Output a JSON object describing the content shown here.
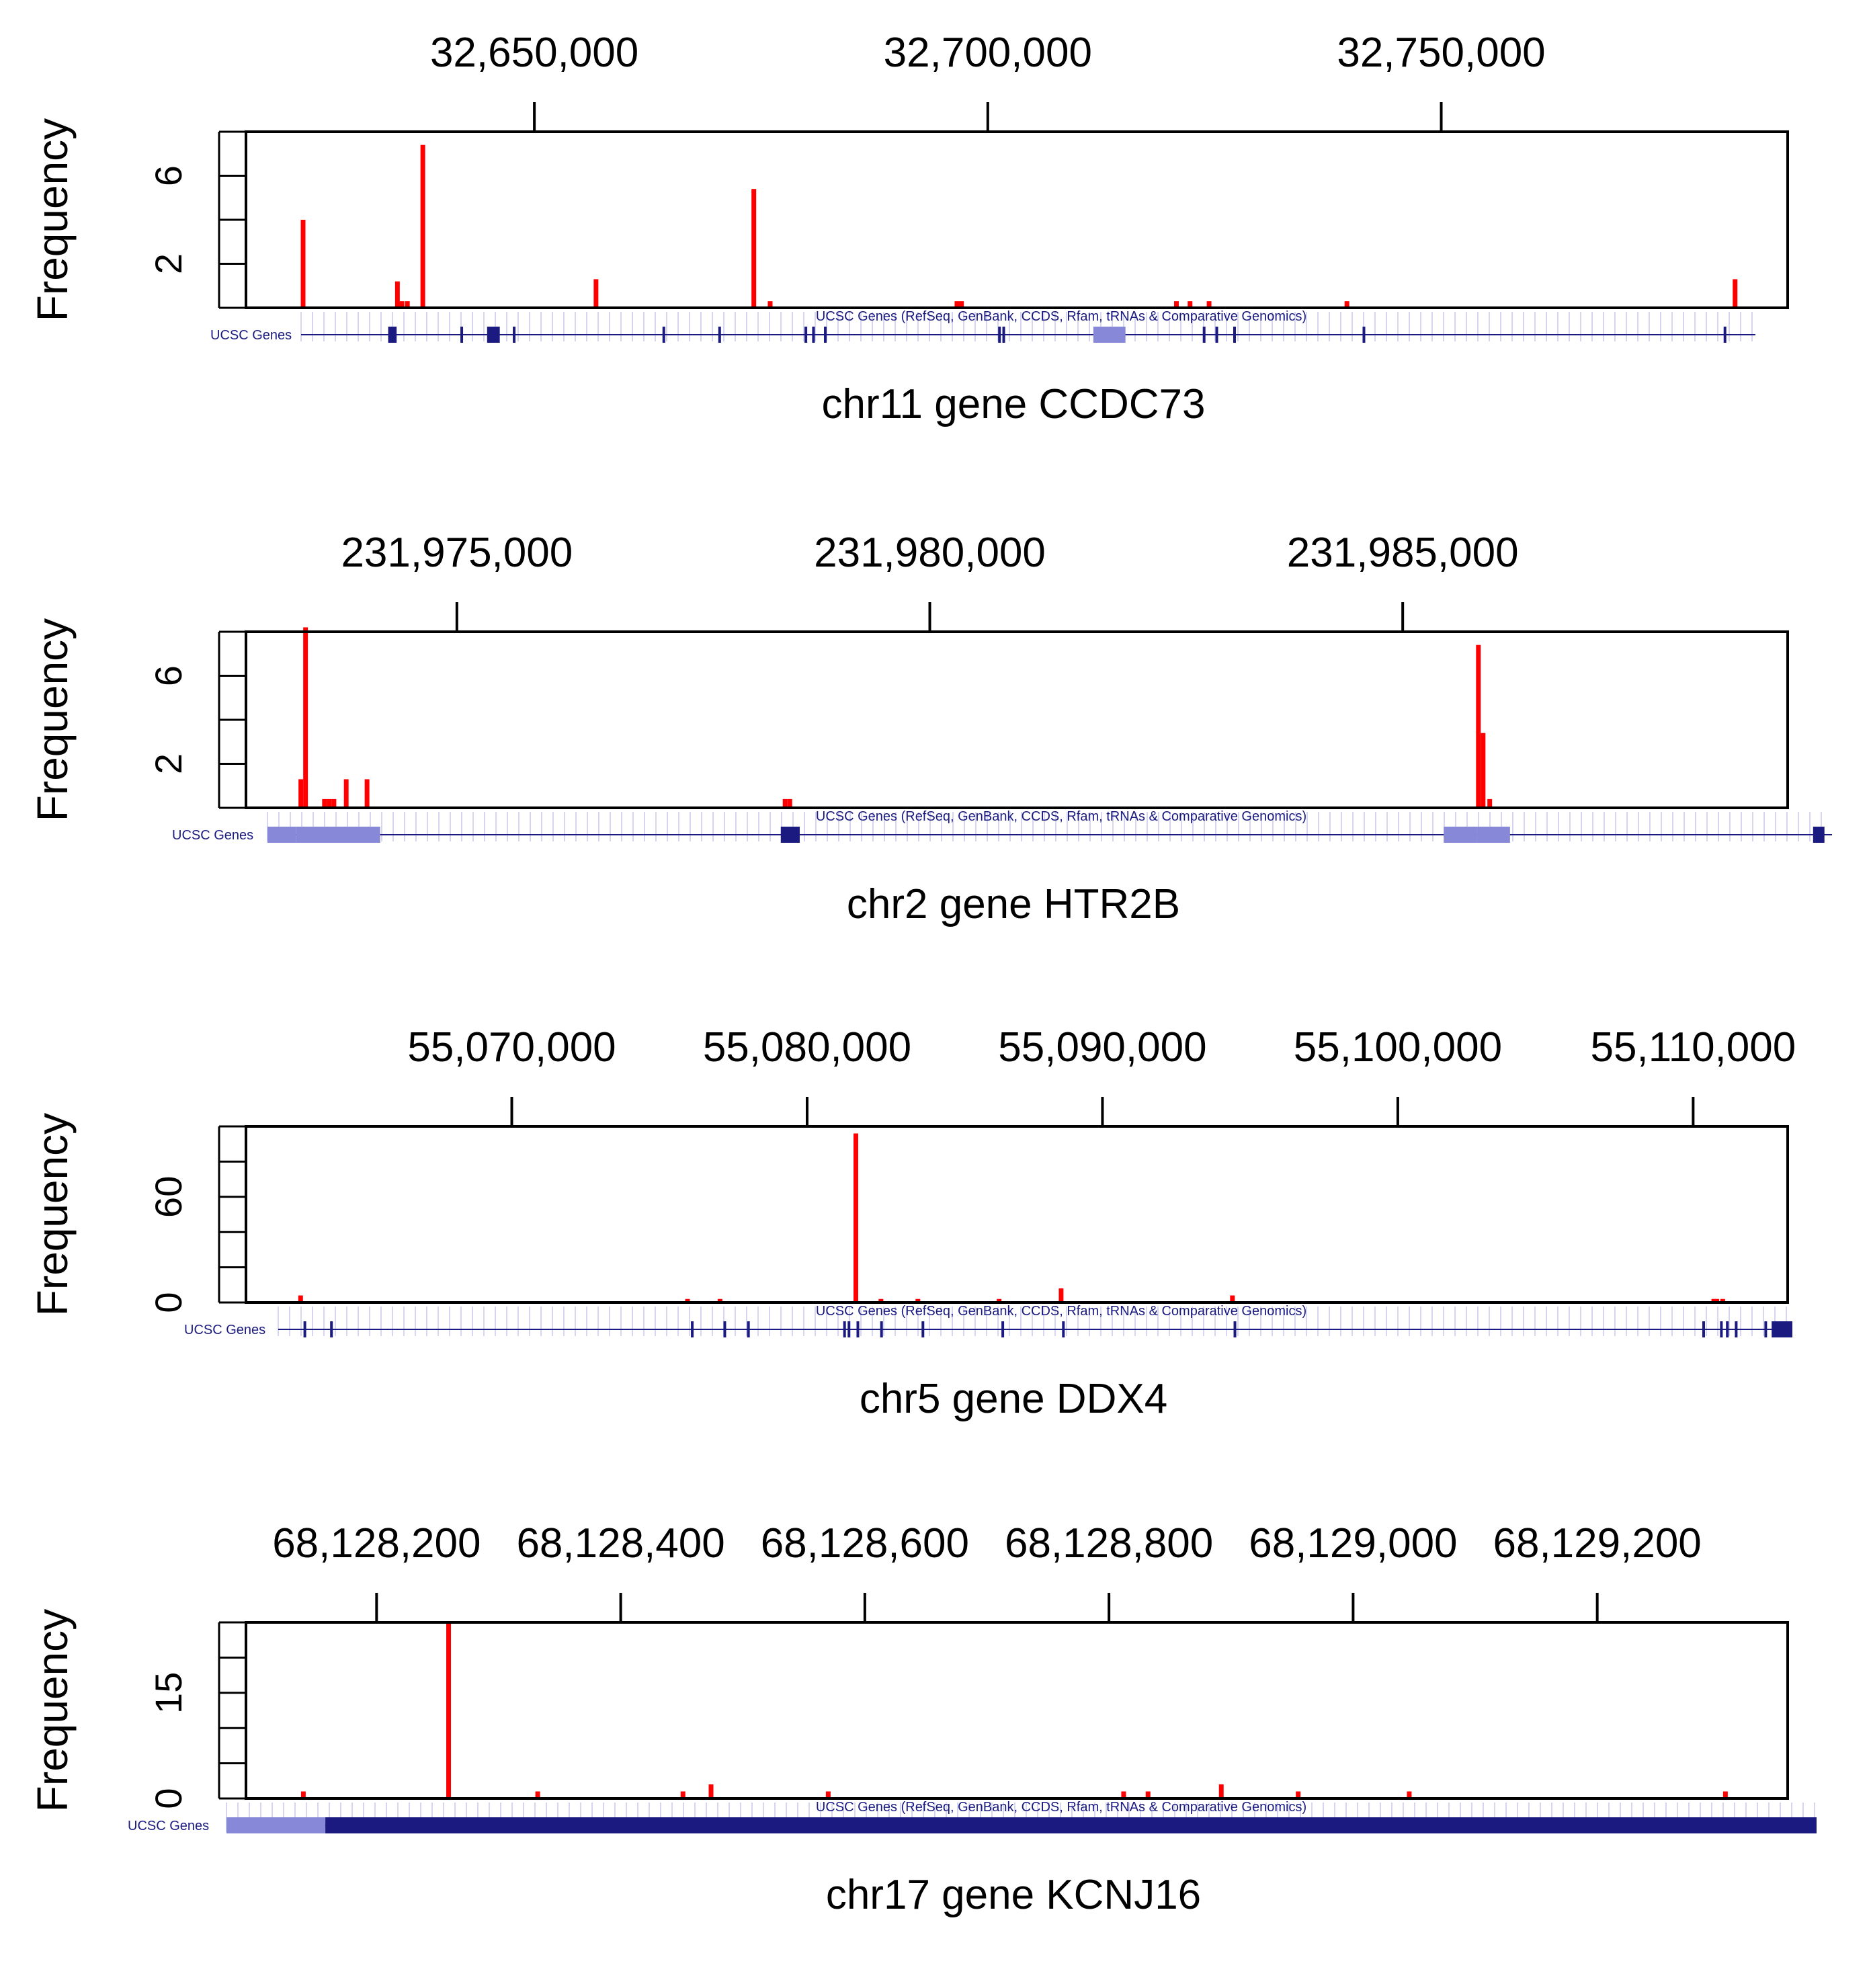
{
  "y_axis_label": "Frequency",
  "track": {
    "label": "UCSC Genes",
    "note": "UCSC Genes (RefSeq, GenBank, CCDS, Rfam, tRNAs & Comparative Genomics)"
  },
  "colors": {
    "bar": "#ff0000",
    "gene_dark": "#1a1a80",
    "gene_light": "#8888d8",
    "tick_light": "#c8c8ee",
    "axis": "#000000"
  },
  "chart_data": [
    {
      "type": "bar",
      "chromosome": "chr11",
      "gene": "CCDC73",
      "title": "chr11 gene CCDC73",
      "xlabel": "",
      "ylabel": "Frequency",
      "xlim": [
        32618200,
        32788200
      ],
      "ylim": [
        0,
        8
      ],
      "x_ticks": [
        32650000,
        32700000,
        32750000
      ],
      "x_tick_labels": [
        "32,650,000",
        "32,700,000",
        "32,750,000"
      ],
      "y_ticks": [
        2,
        6
      ],
      "y_tick_labels": [
        "2",
        "6"
      ],
      "y_minor_ticks": [
        0,
        2,
        4,
        6,
        8
      ],
      "positions": [
        32624500,
        32634900,
        32635400,
        32636000,
        32637700,
        32656800,
        32674200,
        32676000,
        32696600,
        32697100,
        32720800,
        32722300,
        32724400,
        32739600,
        32782400
      ],
      "values": [
        4,
        1.2,
        0.3,
        0.3,
        7.4,
        1.3,
        5.4,
        0.3,
        0.3,
        0.3,
        0.3,
        0.3,
        0.3,
        0.3,
        1.3
      ],
      "gene_track": {
        "track_range": [
          32614100,
          32786100
        ],
        "blocks": [
          {
            "start": 32624400,
            "end": 32625400,
            "shade": "dark"
          },
          {
            "start": 32636100,
            "end": 32637600,
            "shade": "dark"
          },
          {
            "start": 32707800,
            "end": 32711600,
            "shade": "light"
          }
        ],
        "exons": [
          32633100,
          32639300,
          32657000,
          32663600,
          32673800,
          32674700,
          32676100,
          32696700,
          32697200,
          32720900,
          32722400,
          32724500,
          32739800,
          32782500
        ]
      }
    },
    {
      "type": "bar",
      "chromosome": "chr2",
      "gene": "HTR2B",
      "title": "chr2 gene HTR2B",
      "xlabel": "",
      "ylabel": "Frequency",
      "xlim": [
        231972770,
        231989070
      ],
      "ylim": [
        0,
        8
      ],
      "x_ticks": [
        231975000,
        231980000,
        231985000
      ],
      "x_tick_labels": [
        "231,975,000",
        "231,980,000",
        "231,985,000"
      ],
      "y_ticks": [
        2,
        6
      ],
      "y_tick_labels": [
        "2",
        "6"
      ],
      "y_minor_ticks": [
        0,
        2,
        4,
        6,
        8
      ],
      "positions": [
        231973350,
        231973400,
        231973600,
        231973650,
        231973700,
        231973830,
        231974050,
        231978470,
        231978520,
        231985800,
        231985850,
        231985920
      ],
      "values": [
        1.3,
        8.2,
        0.4,
        0.4,
        0.4,
        1.3,
        1.3,
        0.4,
        0.4,
        7.4,
        3.4,
        0.4
      ],
      "gene_track": {
        "track_range": [
          231972980,
          231989500
        ],
        "blocks": [
          {
            "start": 231972980,
            "end": 231973280,
            "shade": "light"
          },
          {
            "start": 231973280,
            "end": 231974170,
            "shade": "light"
          },
          {
            "start": 231978400,
            "end": 231978600,
            "shade": "dark"
          },
          {
            "start": 231985400,
            "end": 231985750,
            "shade": "light"
          },
          {
            "start": 231985750,
            "end": 231986100,
            "shade": "light"
          },
          {
            "start": 231989300,
            "end": 231989420,
            "shade": "dark"
          }
        ],
        "exons": []
      }
    },
    {
      "type": "bar",
      "chromosome": "chr5",
      "gene": "DDX4",
      "title": "chr5 gene DDX4",
      "xlabel": "",
      "ylabel": "Frequency",
      "xlim": [
        55061000,
        55113200
      ],
      "ylim": [
        0,
        100
      ],
      "x_ticks": [
        55070000,
        55080000,
        55090000,
        55100000,
        55110000
      ],
      "x_tick_labels": [
        "55,070,000",
        "55,080,000",
        "55,090,000",
        "55,100,000",
        "55,110,000"
      ],
      "y_ticks": [
        0,
        60
      ],
      "y_tick_labels": [
        "0",
        "60"
      ],
      "y_minor_ticks": [
        0,
        20,
        40,
        60,
        80,
        100
      ],
      "positions": [
        55062850,
        55075950,
        55077050,
        55081650,
        55082500,
        55083750,
        55086500,
        55088600,
        55094400,
        55110700,
        55110800,
        55111000
      ],
      "values": [
        4,
        2,
        2,
        96,
        2,
        2,
        2,
        8,
        4,
        2,
        2,
        2
      ],
      "gene_track": {
        "track_range": [
          55062100,
          55113300
        ],
        "blocks": [
          {
            "start": 55112600,
            "end": 55113300,
            "shade": "dark"
          }
        ],
        "exons": [
          55063000,
          55063900,
          55076100,
          55077200,
          55078000,
          55081250,
          55081400,
          55081700,
          55082500,
          55083900,
          55086600,
          55088650,
          55094450,
          55110300,
          55110900,
          55111100,
          55111400,
          55112400
        ]
      }
    },
    {
      "type": "bar",
      "chromosome": "chr17",
      "gene": "KCNJ16",
      "title": "chr17 gene KCNJ16",
      "xlabel": "",
      "ylabel": "Frequency",
      "xlim": [
        68128093,
        68129356
      ],
      "ylim": [
        0,
        25
      ],
      "x_ticks": [
        68128200,
        68128400,
        68128600,
        68128800,
        68129000,
        68129200
      ],
      "x_tick_labels": [
        "68,128,200",
        "68,128,400",
        "68,128,600",
        "68,128,800",
        "68,129,000",
        "68,129,200"
      ],
      "y_ticks": [
        0,
        15
      ],
      "y_tick_labels": [
        "0",
        "15"
      ],
      "y_minor_ticks": [
        0,
        5,
        10,
        15,
        20,
        25
      ],
      "positions": [
        68128140,
        68128259,
        68128332,
        68128451,
        68128474,
        68128570,
        68128812,
        68128832,
        68128892,
        68128955,
        68129046,
        68129305
      ],
      "values": [
        1,
        25,
        1,
        1,
        2,
        1,
        1,
        1,
        2,
        1,
        1,
        1
      ],
      "gene_track": {
        "track_range": [
          68128075,
          68129378
        ],
        "blocks": [
          {
            "start": 68128075,
            "end": 68128156,
            "shade": "light"
          },
          {
            "start": 68128156,
            "end": 68129378,
            "shade": "dark"
          }
        ],
        "exons": []
      }
    }
  ]
}
